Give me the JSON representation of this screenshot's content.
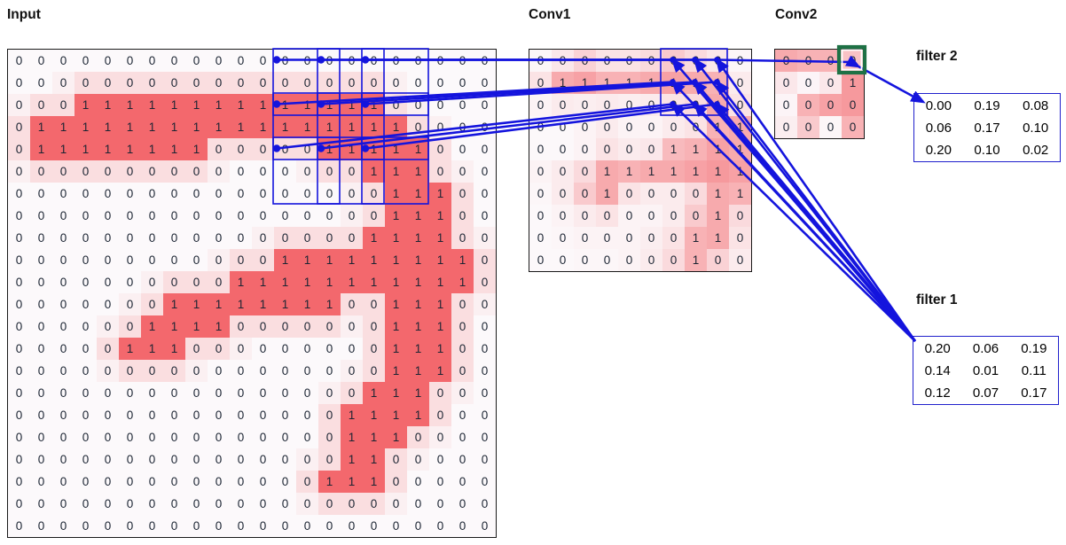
{
  "labels": {
    "input": "Input",
    "conv1": "Conv1",
    "conv2": "Conv2",
    "filter1": "filter 1",
    "filter2": "filter 2"
  },
  "colors": {
    "line_blue": "#1414dd",
    "strong_red": "#f3686d",
    "cell_white": "#fcfbfd",
    "highlight_green": "#1e7145",
    "text_dark": "#1c2533"
  },
  "input_grid": {
    "values": [
      [
        0,
        0,
        0,
        0,
        0,
        0,
        0,
        0,
        0,
        0,
        0,
        0,
        0,
        0,
        0,
        0,
        0,
        0,
        0,
        0,
        0,
        0
      ],
      [
        0,
        0,
        0,
        0,
        0,
        0,
        0,
        0,
        0,
        0,
        0,
        0,
        0,
        0,
        0,
        0,
        0,
        0,
        0,
        0,
        0,
        0
      ],
      [
        0,
        0,
        0,
        1,
        1,
        1,
        1,
        1,
        1,
        1,
        1,
        1,
        1,
        1,
        1,
        1,
        1,
        0,
        0,
        0,
        0,
        0
      ],
      [
        0,
        1,
        1,
        1,
        1,
        1,
        1,
        1,
        1,
        1,
        1,
        1,
        1,
        1,
        1,
        1,
        1,
        1,
        0,
        0,
        0,
        0
      ],
      [
        0,
        1,
        1,
        1,
        1,
        1,
        1,
        1,
        1,
        0,
        0,
        0,
        0,
        0,
        1,
        1,
        1,
        1,
        1,
        0,
        0,
        0
      ],
      [
        0,
        0,
        0,
        0,
        0,
        0,
        0,
        0,
        0,
        0,
        0,
        0,
        0,
        0,
        0,
        0,
        1,
        1,
        1,
        0,
        0,
        0
      ],
      [
        0,
        0,
        0,
        0,
        0,
        0,
        0,
        0,
        0,
        0,
        0,
        0,
        0,
        0,
        0,
        0,
        0,
        1,
        1,
        1,
        0,
        0
      ],
      [
        0,
        0,
        0,
        0,
        0,
        0,
        0,
        0,
        0,
        0,
        0,
        0,
        0,
        0,
        0,
        0,
        0,
        1,
        1,
        1,
        0,
        0
      ],
      [
        0,
        0,
        0,
        0,
        0,
        0,
        0,
        0,
        0,
        0,
        0,
        0,
        0,
        0,
        0,
        0,
        1,
        1,
        1,
        1,
        0,
        0
      ],
      [
        0,
        0,
        0,
        0,
        0,
        0,
        0,
        0,
        0,
        0,
        0,
        0,
        1,
        1,
        1,
        1,
        1,
        1,
        1,
        1,
        1,
        0
      ],
      [
        0,
        0,
        0,
        0,
        0,
        0,
        0,
        0,
        0,
        0,
        1,
        1,
        1,
        1,
        1,
        1,
        1,
        1,
        1,
        1,
        1,
        0
      ],
      [
        0,
        0,
        0,
        0,
        0,
        0,
        0,
        1,
        1,
        1,
        1,
        1,
        1,
        1,
        1,
        0,
        0,
        1,
        1,
        1,
        0,
        0
      ],
      [
        0,
        0,
        0,
        0,
        0,
        0,
        1,
        1,
        1,
        1,
        0,
        0,
        0,
        0,
        0,
        0,
        0,
        1,
        1,
        1,
        0,
        0
      ],
      [
        0,
        0,
        0,
        0,
        0,
        1,
        1,
        1,
        0,
        0,
        0,
        0,
        0,
        0,
        0,
        0,
        0,
        1,
        1,
        1,
        0,
        0
      ],
      [
        0,
        0,
        0,
        0,
        0,
        0,
        0,
        0,
        0,
        0,
        0,
        0,
        0,
        0,
        0,
        0,
        0,
        1,
        1,
        1,
        0,
        0
      ],
      [
        0,
        0,
        0,
        0,
        0,
        0,
        0,
        0,
        0,
        0,
        0,
        0,
        0,
        0,
        0,
        0,
        1,
        1,
        1,
        0,
        0,
        0
      ],
      [
        0,
        0,
        0,
        0,
        0,
        0,
        0,
        0,
        0,
        0,
        0,
        0,
        0,
        0,
        0,
        1,
        1,
        1,
        1,
        0,
        0,
        0
      ],
      [
        0,
        0,
        0,
        0,
        0,
        0,
        0,
        0,
        0,
        0,
        0,
        0,
        0,
        0,
        0,
        1,
        1,
        1,
        0,
        0,
        0,
        0
      ],
      [
        0,
        0,
        0,
        0,
        0,
        0,
        0,
        0,
        0,
        0,
        0,
        0,
        0,
        0,
        0,
        1,
        1,
        0,
        0,
        0,
        0,
        0
      ],
      [
        0,
        0,
        0,
        0,
        0,
        0,
        0,
        0,
        0,
        0,
        0,
        0,
        0,
        0,
        1,
        1,
        1,
        0,
        0,
        0,
        0,
        0
      ],
      [
        0,
        0,
        0,
        0,
        0,
        0,
        0,
        0,
        0,
        0,
        0,
        0,
        0,
        0,
        0,
        0,
        0,
        0,
        0,
        0,
        0,
        0
      ],
      [
        0,
        0,
        0,
        0,
        0,
        0,
        0,
        0,
        0,
        0,
        0,
        0,
        0,
        0,
        0,
        0,
        0,
        0,
        0,
        0,
        0,
        0
      ]
    ]
  },
  "conv1_grid": {
    "values": [
      [
        0,
        0,
        0,
        0,
        0,
        0,
        0,
        0,
        0,
        0
      ],
      [
        0,
        1,
        1,
        1,
        1,
        1,
        1,
        1,
        1,
        0
      ],
      [
        0,
        0,
        0,
        0,
        0,
        0,
        0,
        0,
        1,
        0
      ],
      [
        0,
        0,
        0,
        0,
        0,
        0,
        0,
        0,
        1,
        1
      ],
      [
        0,
        0,
        0,
        0,
        0,
        0,
        1,
        1,
        1,
        1
      ],
      [
        0,
        0,
        0,
        1,
        1,
        1,
        1,
        1,
        1,
        1
      ],
      [
        0,
        0,
        0,
        1,
        0,
        0,
        0,
        0,
        1,
        1
      ],
      [
        0,
        0,
        0,
        0,
        0,
        0,
        0,
        0,
        1,
        0
      ],
      [
        0,
        0,
        0,
        0,
        0,
        0,
        0,
        1,
        1,
        0
      ],
      [
        0,
        0,
        0,
        0,
        0,
        0,
        0,
        1,
        0,
        0
      ]
    ],
    "shades": [
      [
        0.03,
        0.12,
        0.25,
        0.15,
        0.15,
        0.2,
        0.3,
        0.2,
        0.12,
        0.03
      ],
      [
        0.15,
        0.5,
        0.55,
        0.45,
        0.45,
        0.5,
        0.55,
        0.5,
        0.45,
        0.1
      ],
      [
        0.05,
        0.1,
        0.08,
        0.1,
        0.08,
        0.1,
        0.15,
        0.2,
        0.5,
        0.15
      ],
      [
        0.02,
        0.02,
        0.05,
        0.1,
        0.05,
        0.05,
        0.1,
        0.15,
        0.45,
        0.5
      ],
      [
        0.02,
        0.02,
        0.05,
        0.15,
        0.1,
        0.12,
        0.4,
        0.45,
        0.55,
        0.5
      ],
      [
        0.05,
        0.1,
        0.2,
        0.5,
        0.45,
        0.5,
        0.5,
        0.55,
        0.6,
        0.55
      ],
      [
        0.03,
        0.1,
        0.3,
        0.5,
        0.15,
        0.1,
        0.1,
        0.2,
        0.5,
        0.45
      ],
      [
        0.02,
        0.05,
        0.1,
        0.15,
        0.05,
        0.05,
        0.1,
        0.3,
        0.5,
        0.2
      ],
      [
        0.02,
        0.03,
        0.05,
        0.05,
        0.05,
        0.08,
        0.15,
        0.45,
        0.5,
        0.15
      ],
      [
        0.02,
        0.02,
        0.03,
        0.03,
        0.05,
        0.1,
        0.2,
        0.45,
        0.25,
        0.1
      ]
    ]
  },
  "conv2_grid": {
    "values": [
      [
        0,
        0,
        0,
        0
      ],
      [
        0,
        0,
        0,
        1
      ],
      [
        0,
        0,
        0,
        0
      ],
      [
        0,
        0,
        0,
        0
      ]
    ],
    "shades": [
      [
        0.5,
        0.45,
        0.45,
        0.35
      ],
      [
        0.12,
        0.04,
        0.12,
        0.6
      ],
      [
        0.04,
        0.45,
        0.55,
        0.6
      ],
      [
        0.08,
        0.3,
        0.03,
        0.45
      ]
    ]
  },
  "filter1": {
    "label": "filter 1",
    "values": [
      [
        "0.20",
        "0.06",
        "0.19"
      ],
      [
        "0.14",
        "0.01",
        "0.11"
      ],
      [
        "0.12",
        "0.07",
        "0.17"
      ]
    ]
  },
  "filter2": {
    "label": "filter 2",
    "values": [
      [
        "0.00",
        "0.19",
        "0.08"
      ],
      [
        "0.06",
        "0.17",
        "0.10"
      ],
      [
        "0.20",
        "0.10",
        "0.02"
      ]
    ]
  },
  "annotations": {
    "input_rf_anchor_rows": [
      0,
      2,
      4
    ],
    "input_rf_anchor_cols": [
      12,
      14,
      16
    ],
    "rf_box_cells": 3,
    "conv1_rf_box": {
      "row": 0,
      "col": 6,
      "size": 3
    },
    "conv2_highlight_cell": {
      "row": 0,
      "col": 3
    }
  }
}
